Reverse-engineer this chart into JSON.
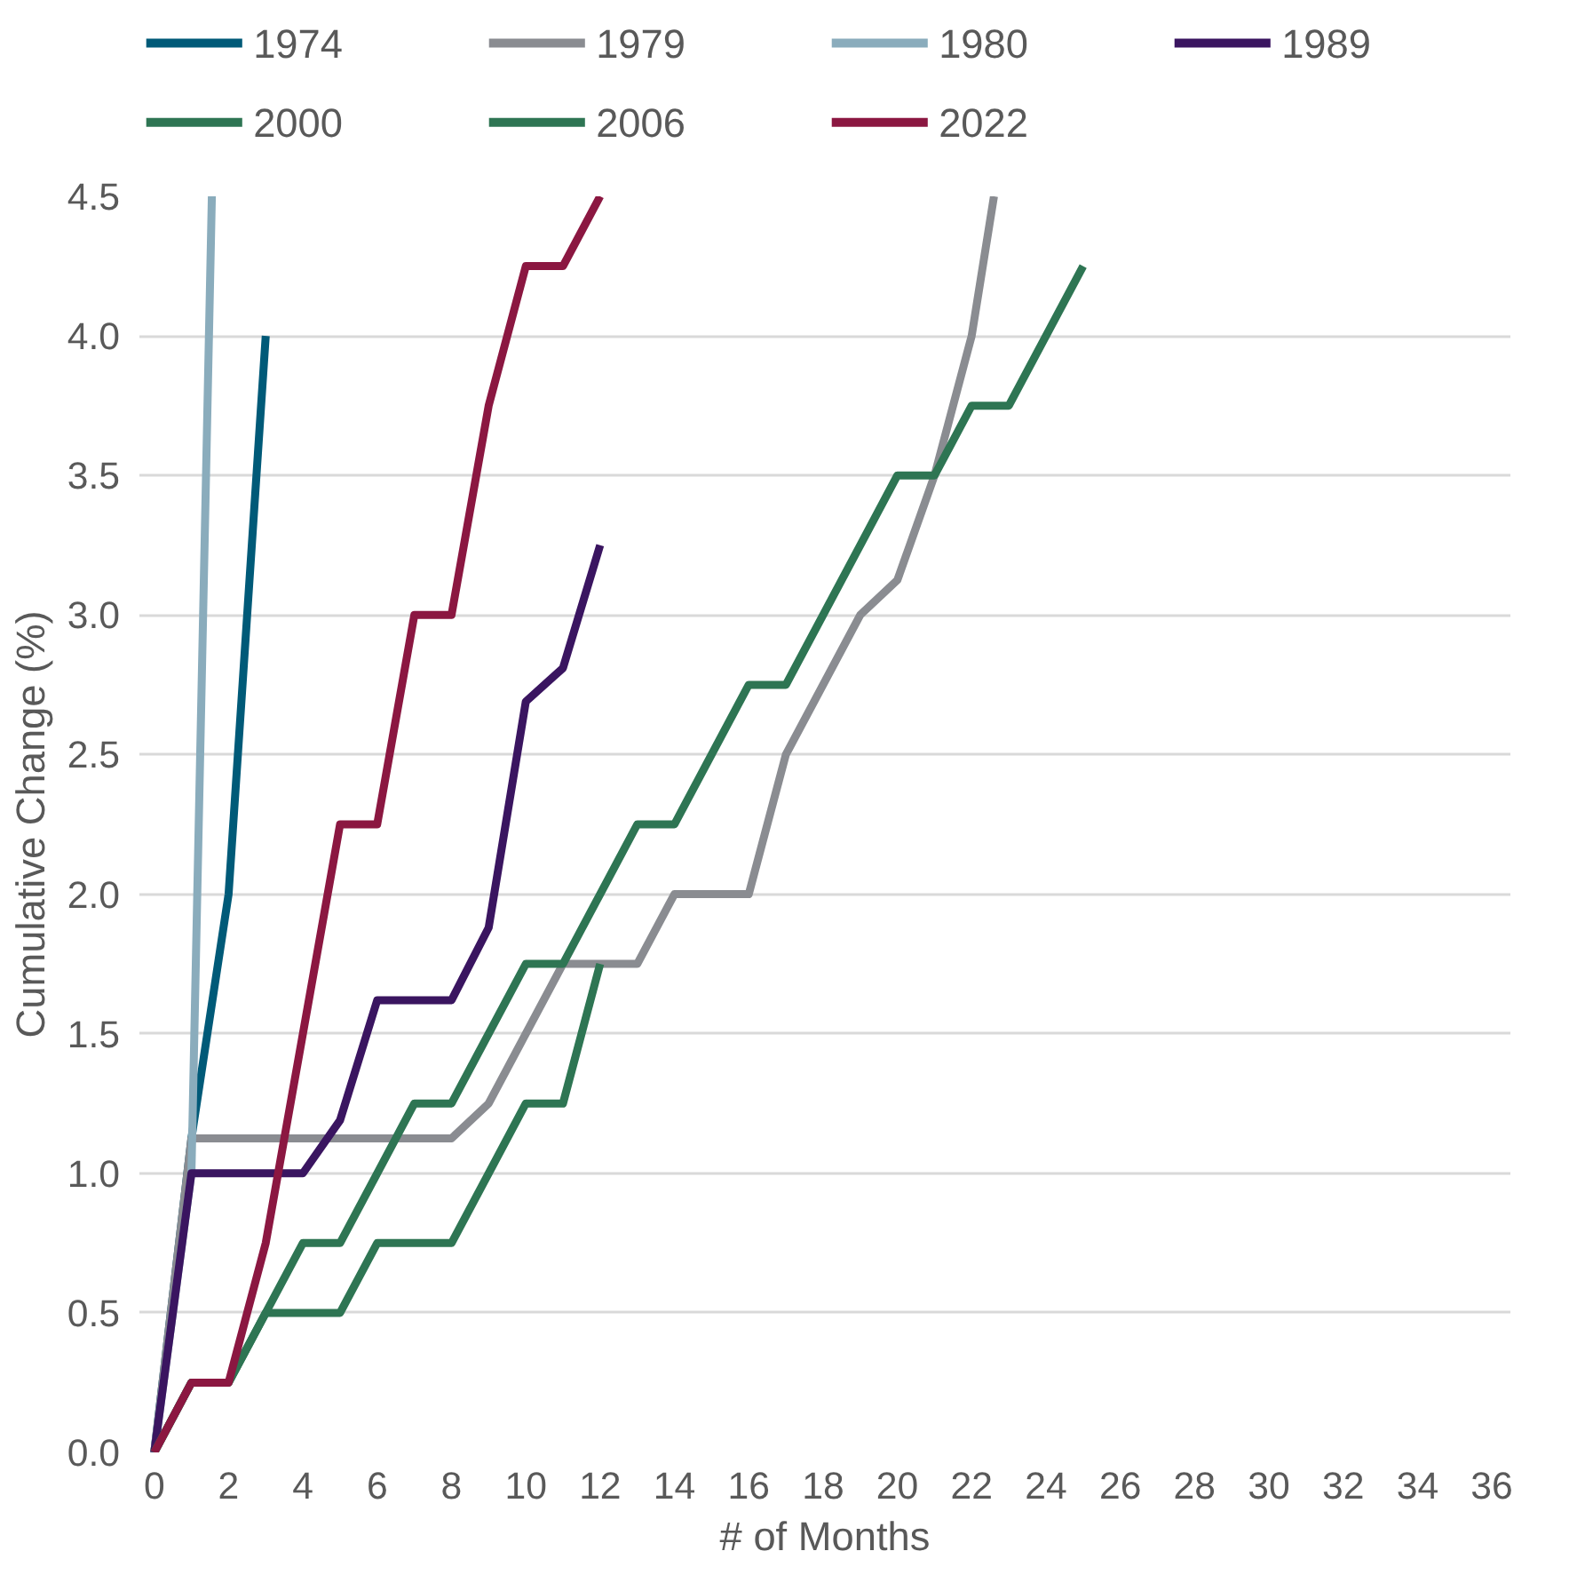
{
  "chart_data": {
    "type": "line",
    "xlabel": "# of Months",
    "ylabel": "Cumulative Change (%)",
    "xlim": [
      -0.4,
      36.5
    ],
    "xticks": [
      0,
      2,
      4,
      6,
      8,
      10,
      12,
      14,
      16,
      18,
      20,
      22,
      24,
      26,
      28,
      30,
      32,
      34,
      36
    ],
    "ylim": [
      0,
      4.5
    ],
    "yticks": [
      {
        "value": 0,
        "label": "0.0"
      },
      0.5,
      {
        "value": 1,
        "label": "1.0"
      },
      1.5,
      {
        "value": 2,
        "label": "2.0"
      },
      2.5,
      {
        "value": 3,
        "label": "3.0"
      },
      3.5,
      {
        "value": 4,
        "label": "4.0"
      },
      4.5
    ],
    "grid": "y",
    "legend": "top",
    "marker": "none",
    "line_style": "solid",
    "series": [
      {
        "name": "1974",
        "color": "#005a78",
        "x": [
          0,
          1,
          2,
          3
        ],
        "values": [
          0,
          1.125,
          2,
          4
        ]
      },
      {
        "name": "1979",
        "color": "#8a8c91",
        "x": [
          0,
          1,
          2,
          3,
          4,
          5,
          6,
          7,
          8,
          9,
          10,
          11,
          12,
          13,
          14,
          15,
          16,
          17,
          18,
          19,
          20,
          21,
          22,
          22.6
        ],
        "values": [
          0,
          1.125,
          1.125,
          1.125,
          1.125,
          1.125,
          1.125,
          1.125,
          1.125,
          1.25,
          1.5,
          1.75,
          1.75,
          1.75,
          2,
          2,
          2,
          2.5,
          2.75,
          3,
          3.125,
          3.5,
          4,
          4.5
        ]
      },
      {
        "name": "1980",
        "color": "#8aacbc",
        "x": [
          0,
          1,
          1.55
        ],
        "values": [
          0,
          1.0,
          4.5
        ]
      },
      {
        "name": "1989",
        "color": "#3a1560",
        "x": [
          0,
          1,
          2,
          3,
          4,
          5,
          6,
          7,
          8,
          9,
          10,
          11,
          12
        ],
        "values": [
          0,
          1,
          1,
          1,
          1,
          1.19,
          1.62,
          1.62,
          1.62,
          1.88,
          2.69,
          2.81,
          3.25
        ]
      },
      {
        "name": "2000",
        "color": "#2e7553",
        "x": [
          0,
          1,
          2,
          3,
          4,
          5,
          6,
          7,
          8,
          9,
          10,
          11,
          12
        ],
        "values": [
          0,
          0.25,
          0.25,
          0.5,
          0.5,
          0.5,
          0.75,
          0.75,
          0.75,
          1,
          1.25,
          1.25,
          1.75
        ]
      },
      {
        "name": "2006",
        "color": "#2e7553",
        "x": [
          0,
          1,
          2,
          3,
          4,
          5,
          6,
          7,
          8,
          9,
          10,
          11,
          12,
          13,
          14,
          15,
          16,
          17,
          18,
          19,
          20,
          21,
          22,
          23,
          24,
          25
        ],
        "values": [
          0,
          0.25,
          0.25,
          0.5,
          0.75,
          0.75,
          1,
          1.25,
          1.25,
          1.5,
          1.75,
          1.75,
          2,
          2.25,
          2.25,
          2.5,
          2.75,
          2.75,
          3,
          3.25,
          3.5,
          3.5,
          3.75,
          3.75,
          4,
          4.25
        ]
      },
      {
        "name": "2022",
        "color": "#8b1741",
        "x": [
          0,
          1,
          2,
          3,
          4,
          5,
          6,
          7,
          8,
          9,
          10,
          11,
          12
        ],
        "values": [
          0,
          0.25,
          0.25,
          0.75,
          1.5,
          2.25,
          2.25,
          3,
          3,
          3.75,
          4.25,
          4.25,
          4.5
        ]
      }
    ]
  }
}
